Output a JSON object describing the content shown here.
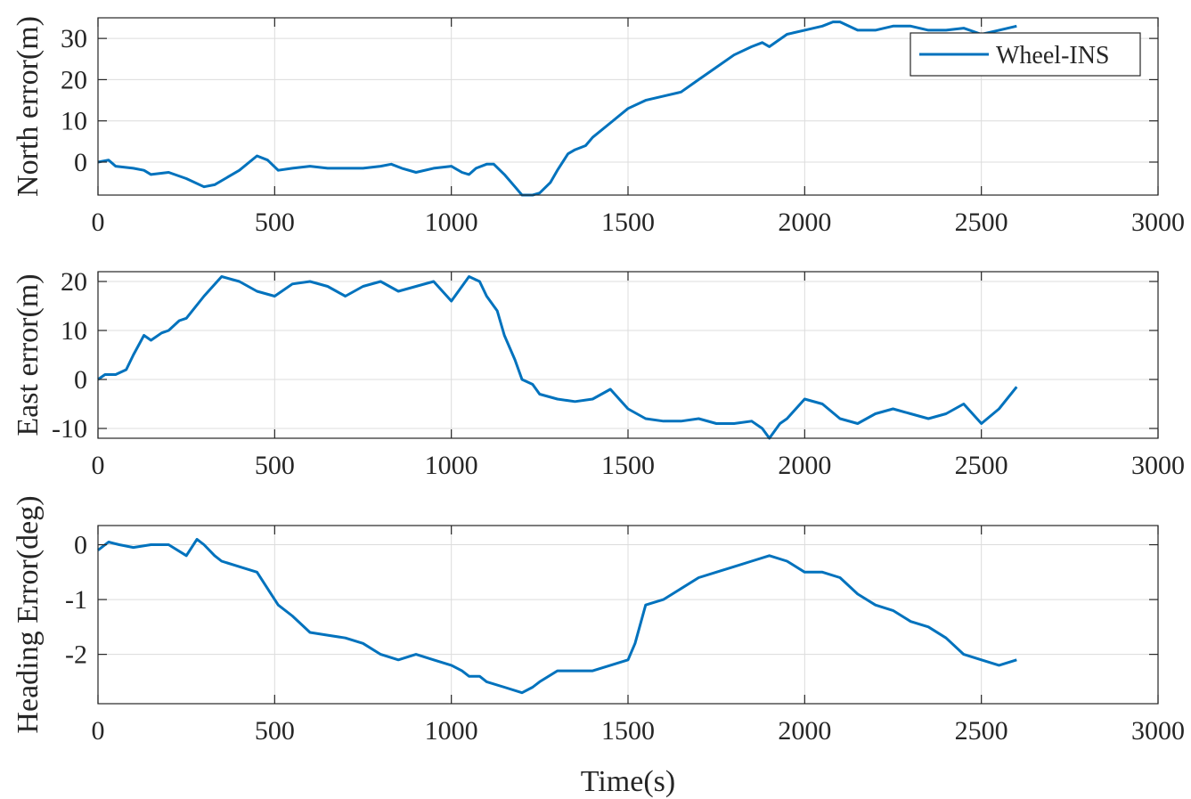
{
  "colors": {
    "line": "#0072BD",
    "axes": "#262626",
    "grid": "#dcdcdc",
    "background": "#ffffff"
  },
  "chart_data": [
    {
      "type": "line",
      "ylabel": "North error(m)",
      "xlabel": "",
      "xlim": [
        0,
        3000
      ],
      "ylim": [
        -8,
        35
      ],
      "xticks": [
        0,
        500,
        1000,
        1500,
        2000,
        2500,
        3000
      ],
      "yticks": [
        0,
        10,
        20,
        30
      ],
      "grid": true,
      "legend": {
        "position": "top-right",
        "entries": [
          "Wheel-INS"
        ]
      },
      "series": [
        {
          "name": "Wheel-INS",
          "x": [
            0,
            30,
            50,
            100,
            130,
            150,
            200,
            250,
            300,
            330,
            360,
            400,
            450,
            480,
            510,
            550,
            600,
            650,
            700,
            750,
            800,
            830,
            860,
            900,
            950,
            1000,
            1030,
            1050,
            1070,
            1100,
            1120,
            1150,
            1180,
            1200,
            1230,
            1250,
            1280,
            1300,
            1330,
            1350,
            1380,
            1400,
            1450,
            1500,
            1550,
            1600,
            1650,
            1700,
            1750,
            1800,
            1850,
            1880,
            1900,
            1950,
            2000,
            2050,
            2080,
            2100,
            2150,
            2200,
            2250,
            2300,
            2350,
            2400,
            2450,
            2500,
            2550,
            2600
          ],
          "y": [
            0,
            0.5,
            -1,
            -1.5,
            -2,
            -3,
            -2.5,
            -4,
            -6,
            -5.5,
            -4,
            -2,
            1.5,
            0.5,
            -2,
            -1.5,
            -1,
            -1.5,
            -1.5,
            -1.5,
            -1,
            -0.5,
            -1.5,
            -2.5,
            -1.5,
            -1,
            -2.5,
            -3,
            -1.5,
            -0.5,
            -0.5,
            -3,
            -6,
            -8,
            -8,
            -7.5,
            -5,
            -2,
            2,
            3,
            4,
            6,
            9.5,
            13,
            15,
            16,
            17,
            20,
            23,
            26,
            28,
            29,
            28,
            31,
            32,
            33,
            34,
            34,
            32,
            32,
            33,
            33,
            32,
            32,
            32.5,
            31,
            32,
            33
          ]
        }
      ]
    },
    {
      "type": "line",
      "ylabel": "East error(m)",
      "xlabel": "",
      "xlim": [
        0,
        3000
      ],
      "ylim": [
        -12,
        22
      ],
      "xticks": [
        0,
        500,
        1000,
        1500,
        2000,
        2500,
        3000
      ],
      "yticks": [
        -10,
        0,
        10,
        20
      ],
      "grid": true,
      "series": [
        {
          "x": [
            0,
            20,
            50,
            80,
            100,
            130,
            150,
            180,
            200,
            230,
            250,
            300,
            350,
            400,
            450,
            500,
            550,
            600,
            650,
            700,
            750,
            800,
            850,
            900,
            950,
            1000,
            1050,
            1080,
            1100,
            1130,
            1150,
            1180,
            1200,
            1230,
            1250,
            1300,
            1350,
            1400,
            1450,
            1500,
            1550,
            1600,
            1650,
            1700,
            1750,
            1800,
            1850,
            1880,
            1900,
            1930,
            1950,
            2000,
            2050,
            2100,
            2150,
            2200,
            2250,
            2300,
            2350,
            2400,
            2450,
            2500,
            2550,
            2600
          ],
          "y": [
            0,
            1,
            1,
            2,
            5,
            9,
            8,
            9.5,
            10,
            12,
            12.5,
            17,
            21,
            20,
            18,
            17,
            19.5,
            20,
            19,
            17,
            19,
            20,
            18,
            19,
            20,
            16,
            21,
            20,
            17,
            14,
            9,
            4,
            0,
            -1,
            -3,
            -4,
            -4.5,
            -4,
            -2,
            -6,
            -8,
            -8.5,
            -8.5,
            -8,
            -9,
            -9,
            -8.5,
            -10,
            -12,
            -9,
            -8,
            -4,
            -5,
            -8,
            -9,
            -7,
            -6,
            -7,
            -8,
            -7,
            -5,
            -9,
            -6,
            -1.5
          ]
        }
      ]
    },
    {
      "type": "line",
      "ylabel": "Heading Error(deg)",
      "xlabel": "Time(s)",
      "xlim": [
        0,
        3000
      ],
      "ylim": [
        -2.9,
        0.35
      ],
      "xticks": [
        0,
        500,
        1000,
        1500,
        2000,
        2500,
        3000
      ],
      "yticks": [
        -2,
        -1,
        0
      ],
      "grid": true,
      "series": [
        {
          "x": [
            0,
            30,
            60,
            100,
            150,
            200,
            250,
            280,
            300,
            330,
            350,
            400,
            450,
            480,
            510,
            550,
            600,
            650,
            700,
            750,
            800,
            850,
            900,
            950,
            1000,
            1030,
            1050,
            1080,
            1100,
            1150,
            1200,
            1230,
            1250,
            1300,
            1350,
            1400,
            1450,
            1500,
            1520,
            1550,
            1600,
            1650,
            1700,
            1750,
            1800,
            1850,
            1900,
            1950,
            2000,
            2050,
            2100,
            2150,
            2200,
            2250,
            2300,
            2350,
            2400,
            2450,
            2500,
            2550,
            2600
          ],
          "y": [
            -0.1,
            0.05,
            0,
            -0.05,
            0,
            0,
            -0.2,
            0.1,
            0,
            -0.2,
            -0.3,
            -0.4,
            -0.5,
            -0.8,
            -1.1,
            -1.3,
            -1.6,
            -1.65,
            -1.7,
            -1.8,
            -2.0,
            -2.1,
            -2.0,
            -2.1,
            -2.2,
            -2.3,
            -2.4,
            -2.4,
            -2.5,
            -2.6,
            -2.7,
            -2.6,
            -2.5,
            -2.3,
            -2.3,
            -2.3,
            -2.2,
            -2.1,
            -1.8,
            -1.1,
            -1.0,
            -0.8,
            -0.6,
            -0.5,
            -0.4,
            -0.3,
            -0.2,
            -0.3,
            -0.5,
            -0.5,
            -0.6,
            -0.9,
            -1.1,
            -1.2,
            -1.4,
            -1.5,
            -1.7,
            -2.0,
            -2.1,
            -2.2,
            -2.1
          ]
        }
      ]
    }
  ]
}
